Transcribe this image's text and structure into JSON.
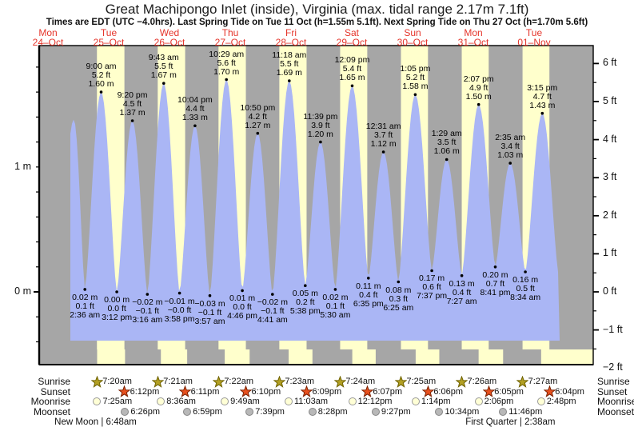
{
  "title": "Great Machipongo Inlet (inside), Virginia (max. tidal range 2.17m 7.1ft)",
  "subtitle": "Times are EDT (UTC −4.0hrs). Last Spring Tide on Tue 11 Oct (h=1.55m 5.1ft). Next Spring Tide on Thu 27 Oct (h=1.70m 5.6ft)",
  "colors": {
    "night_band": "#a6a6a6",
    "daylight_band": "#ffffcc",
    "tide_fill": "#aab6f5",
    "day_label_red": "#e5352b",
    "sunrise_star": "#b3a024",
    "sunrise_star_edge": "#6f6200",
    "sunset_star": "#e8501e",
    "sunset_star_edge": "#7a2000",
    "moonrise_circle": "#ffffd6",
    "moonrise_edge": "#999999",
    "moonset_circle": "#b8b8b8",
    "moonset_edge": "#858585",
    "axis": "#000000"
  },
  "days": [
    {
      "weekday": "Mon",
      "date": "24–Oct"
    },
    {
      "weekday": "Tue",
      "date": "25–Oct"
    },
    {
      "weekday": "Wed",
      "date": "26–Oct"
    },
    {
      "weekday": "Thu",
      "date": "27–Oct"
    },
    {
      "weekday": "Fri",
      "date": "28–Oct"
    },
    {
      "weekday": "Sat",
      "date": "29–Oct"
    },
    {
      "weekday": "Sun",
      "date": "30–Oct"
    },
    {
      "weekday": "Mon",
      "date": "31–Oct"
    },
    {
      "weekday": "Tue",
      "date": "01–Nov"
    }
  ],
  "axes": {
    "left_labels": [
      {
        "text": "1 m",
        "value_m": 1
      },
      {
        "text": "0 m",
        "value_m": 0
      }
    ],
    "right_labels": [
      {
        "text": "6 ft",
        "value_ft": 6
      },
      {
        "text": "5 ft",
        "value_ft": 5
      },
      {
        "text": "4 ft",
        "value_ft": 4
      },
      {
        "text": "3 ft",
        "value_ft": 3
      },
      {
        "text": "2 ft",
        "value_ft": 2
      },
      {
        "text": "1 ft",
        "value_ft": 1
      },
      {
        "text": "0 ft",
        "value_ft": 0
      },
      {
        "text": "−1 ft",
        "value_ft": -1
      },
      {
        "text": "−2 ft",
        "value_ft": -2
      }
    ]
  },
  "legend": {
    "rows": [
      "Sunrise",
      "Sunset",
      "Moonrise",
      "Moonset"
    ]
  },
  "chart_data": {
    "type": "area",
    "title": "Tide height forecast, Mon 24 Oct – Tue 01 Nov",
    "ylabel_left": "m",
    "ylabel_right": "ft",
    "ylim_ft": [
      -2,
      6
    ],
    "extremes": [
      {
        "day": 1,
        "type": "L",
        "time": "2:36 am",
        "ft": "0.1 ft",
        "m": "0.02 m"
      },
      {
        "day": 1,
        "type": "H",
        "time": "9:00 am",
        "ft": "5.2 ft",
        "m": "1.60 m"
      },
      {
        "day": 1,
        "type": "L",
        "time": "3:12 pm",
        "ft": "0.0 ft",
        "m": "0.00 m"
      },
      {
        "day": 1,
        "type": "H",
        "time": "9:20 pm",
        "ft": "4.5 ft",
        "m": "1.37 m"
      },
      {
        "day": 2,
        "type": "L",
        "time": "3:16 am",
        "ft": "−0.1 ft",
        "m": "−0.02 m"
      },
      {
        "day": 2,
        "type": "H",
        "time": "9:43 am",
        "ft": "5.5 ft",
        "m": "1.67 m"
      },
      {
        "day": 2,
        "type": "L",
        "time": "3:58 pm",
        "ft": "−0.0 ft",
        "m": "−0.01 m"
      },
      {
        "day": 2,
        "type": "H",
        "time": "10:04 pm",
        "ft": "4.4 ft",
        "m": "1.33 m"
      },
      {
        "day": 3,
        "type": "L",
        "time": "3:57 am",
        "ft": "−0.1 ft",
        "m": "−0.03 m"
      },
      {
        "day": 3,
        "type": "H",
        "time": "10:29 am",
        "ft": "5.6 ft",
        "m": "1.70 m"
      },
      {
        "day": 3,
        "type": "L",
        "time": "4:46 pm",
        "ft": "0.0 ft",
        "m": "0.01 m"
      },
      {
        "day": 3,
        "type": "H",
        "time": "10:50 pm",
        "ft": "4.2 ft",
        "m": "1.27 m"
      },
      {
        "day": 4,
        "type": "L",
        "time": "4:41 am",
        "ft": "−0.1 ft",
        "m": "−0.02 m"
      },
      {
        "day": 4,
        "type": "H",
        "time": "11:18 am",
        "ft": "5.5 ft",
        "m": "1.69 m"
      },
      {
        "day": 4,
        "type": "L",
        "time": "5:38 pm",
        "ft": "0.2 ft",
        "m": "0.05 m"
      },
      {
        "day": 4,
        "type": "H",
        "time": "11:39 pm",
        "ft": "3.9 ft",
        "m": "1.20 m"
      },
      {
        "day": 5,
        "type": "L",
        "time": "5:30 am",
        "ft": "0.1 ft",
        "m": "0.02 m"
      },
      {
        "day": 5,
        "type": "H",
        "time": "12:09 pm",
        "ft": "5.4 ft",
        "m": "1.65 m"
      },
      {
        "day": 5,
        "type": "L",
        "time": "6:35 pm",
        "ft": "0.4 ft",
        "m": "0.11 m"
      },
      {
        "day": 6,
        "type": "H",
        "time": "12:31 am",
        "ft": "3.7 ft",
        "m": "1.12 m"
      },
      {
        "day": 6,
        "type": "L",
        "time": "6:25 am",
        "ft": "0.3 ft",
        "m": "0.08 m"
      },
      {
        "day": 6,
        "type": "H",
        "time": "1:05 pm",
        "ft": "5.2 ft",
        "m": "1.58 m"
      },
      {
        "day": 6,
        "type": "L",
        "time": "7:37 pm",
        "ft": "0.6 ft",
        "m": "0.17 m"
      },
      {
        "day": 7,
        "type": "H",
        "time": "1:29 am",
        "ft": "3.5 ft",
        "m": "1.06 m"
      },
      {
        "day": 7,
        "type": "L",
        "time": "7:27 am",
        "ft": "0.4 ft",
        "m": "0.13 m"
      },
      {
        "day": 7,
        "type": "H",
        "time": "2:07 pm",
        "ft": "4.9 ft",
        "m": "1.50 m"
      },
      {
        "day": 7,
        "type": "L",
        "time": "8:41 pm",
        "ft": "0.7 ft",
        "m": "0.20 m"
      },
      {
        "day": 8,
        "type": "H",
        "time": "2:35 am",
        "ft": "3.4 ft",
        "m": "1.03 m"
      },
      {
        "day": 8,
        "type": "L",
        "time": "8:34 am",
        "ft": "0.5 ft",
        "m": "0.16 m"
      },
      {
        "day": 8,
        "type": "H",
        "time": "3:15 pm",
        "ft": "4.7 ft",
        "m": "1.43 m"
      }
    ],
    "sunrise": {
      "start_day": 1,
      "times": [
        "7:20am",
        "7:21am",
        "7:22am",
        "7:23am",
        "7:24am",
        "7:25am",
        "7:26am",
        "7:27am"
      ]
    },
    "sunset": {
      "start_day": 1,
      "times": [
        "6:12pm",
        "6:11pm",
        "6:10pm",
        "6:09pm",
        "6:07pm",
        "6:06pm",
        "6:05pm",
        "6:04pm"
      ]
    },
    "moonrise": {
      "start_day": 1,
      "times": [
        "7:25am",
        "8:36am",
        "9:49am",
        "11:03am",
        "12:12pm",
        "1:14pm",
        "2:06pm",
        "2:48pm"
      ]
    },
    "moonset": {
      "start_day": 1,
      "times": [
        "6:26pm",
        "6:59pm",
        "7:39pm",
        "8:28pm",
        "9:27pm",
        "10:34pm",
        "11:46pm"
      ]
    },
    "phases": [
      {
        "name": "New Moon",
        "time": "6:48am",
        "day": 1
      },
      {
        "name": "First Quarter",
        "time": "2:38am",
        "day": 8
      }
    ]
  }
}
